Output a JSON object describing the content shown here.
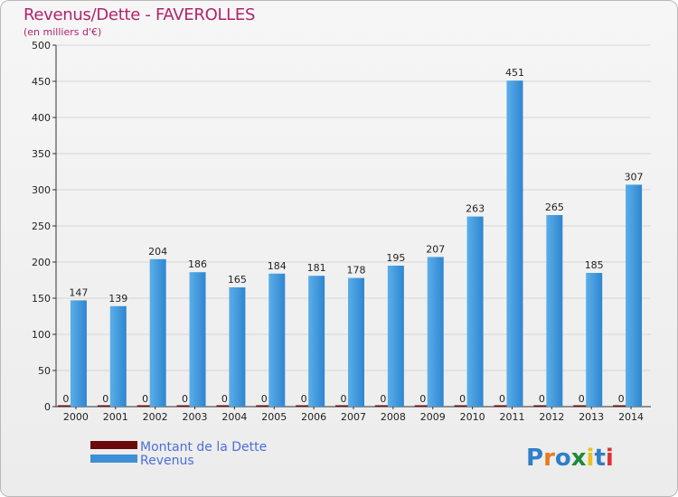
{
  "chart_data": {
    "type": "bar",
    "title": "Revenus/Dette - FAVEROLLES",
    "subtitle": "(en milliers d'€)",
    "categories": [
      "2000",
      "2001",
      "2002",
      "2003",
      "2004",
      "2005",
      "2006",
      "2007",
      "2008",
      "2009",
      "2010",
      "2011",
      "2012",
      "2013",
      "2014"
    ],
    "series": [
      {
        "name": "Montant de la Dette",
        "color": "#6b0a0a",
        "values": [
          0,
          0,
          0,
          0,
          0,
          0,
          0,
          0,
          0,
          0,
          0,
          0,
          0,
          0,
          0
        ]
      },
      {
        "name": "Revenus",
        "color": "#3d8fd6",
        "values": [
          147,
          139,
          204,
          186,
          165,
          184,
          181,
          178,
          195,
          207,
          263,
          451,
          265,
          185,
          307
        ]
      }
    ],
    "ylim": [
      0,
      500
    ],
    "yticks": [
      0,
      50,
      100,
      150,
      200,
      250,
      300,
      350,
      400,
      450,
      500
    ],
    "grid": true,
    "legend": "bottom-left"
  },
  "logo": {
    "text": "Proxiti",
    "letters": [
      "P",
      "r",
      "o",
      "x",
      "i",
      "t",
      "i"
    ],
    "colors": [
      "#2f7fc8",
      "#e87a1e",
      "#2f7fc8",
      "#1f8a3a",
      "#e8c21e",
      "#2f7fc8",
      "#d33"
    ]
  }
}
